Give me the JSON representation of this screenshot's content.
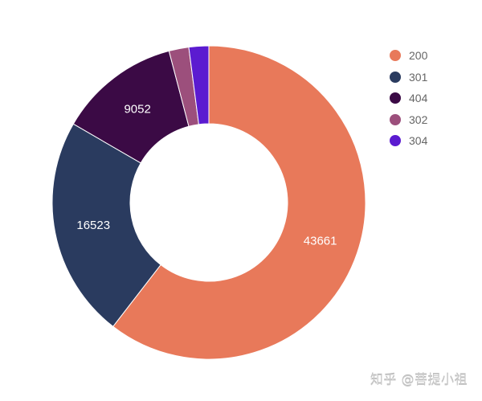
{
  "chart_data": {
    "type": "pie",
    "subtype": "donut",
    "title": "",
    "categories": [
      "200",
      "301",
      "404",
      "302",
      "304"
    ],
    "values": [
      43661,
      16523,
      9052,
      1480,
      1480
    ],
    "shown_labels": [
      "43661",
      "16523",
      "9052",
      "",
      ""
    ],
    "colors": [
      "#E8795A",
      "#2A3B5F",
      "#3B0A45",
      "#9C4F7C",
      "#5B1BD0"
    ],
    "legend_position": "right",
    "start_angle": 0,
    "direction": "clockwise"
  },
  "legend": {
    "items": [
      {
        "label": "200",
        "color": "#E8795A"
      },
      {
        "label": "301",
        "color": "#2A3B5F"
      },
      {
        "label": "404",
        "color": "#3B0A45"
      },
      {
        "label": "302",
        "color": "#9C4F7C"
      },
      {
        "label": "304",
        "color": "#5B1BD0"
      }
    ]
  },
  "watermark": "知乎 @菩提小祖"
}
